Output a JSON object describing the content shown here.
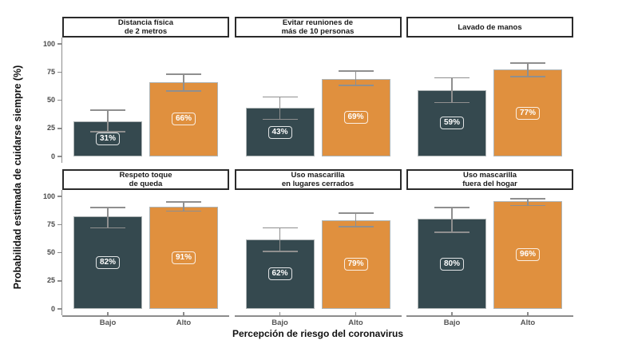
{
  "chart_data": {
    "type": "bar",
    "title": "",
    "xlabel": "Percepción de riesgo del coronavirus",
    "ylabel": "Probabilidad estimada de cuidarse siempre (%)",
    "categories": [
      "Bajo",
      "Alto"
    ],
    "y_ticks": [
      0,
      25,
      50,
      75,
      100
    ],
    "ylim": [
      0,
      105
    ],
    "grid": false,
    "legend": "none",
    "bar_colors": [
      "#35494F",
      "#E0903E"
    ],
    "error_bar_color": "#8F8F8F",
    "axis_color": "#8C8C8C",
    "facets": [
      {
        "title": "Distancia física\nde 2 metros",
        "values": [
          31,
          66
        ],
        "labels": [
          "31%",
          "66%"
        ],
        "error_low": [
          22,
          58
        ],
        "error_high": [
          41,
          73
        ]
      },
      {
        "title": "Evitar reuniones de\nmás de 10 personas",
        "values": [
          43,
          69
        ],
        "labels": [
          "43%",
          "69%"
        ],
        "error_low": [
          33,
          63
        ],
        "error_high": [
          53,
          76
        ]
      },
      {
        "title": "Lavado de manos",
        "values": [
          59,
          77
        ],
        "labels": [
          "59%",
          "77%"
        ],
        "error_low": [
          48,
          71
        ],
        "error_high": [
          70,
          83
        ]
      },
      {
        "title": "Respeto toque\nde queda",
        "values": [
          82,
          91
        ],
        "labels": [
          "82%",
          "91%"
        ],
        "error_low": [
          72,
          87
        ],
        "error_high": [
          90,
          95
        ]
      },
      {
        "title": "Uso mascarilla\nen lugares cerrados",
        "values": [
          62,
          79
        ],
        "labels": [
          "62%",
          "79%"
        ],
        "error_low": [
          51,
          73
        ],
        "error_high": [
          72,
          85
        ]
      },
      {
        "title": "Uso mascarilla\nfuera del hogar",
        "values": [
          80,
          96
        ],
        "labels": [
          "80%",
          "96%"
        ],
        "error_low": [
          68,
          92
        ],
        "error_high": [
          90,
          98
        ]
      }
    ]
  }
}
